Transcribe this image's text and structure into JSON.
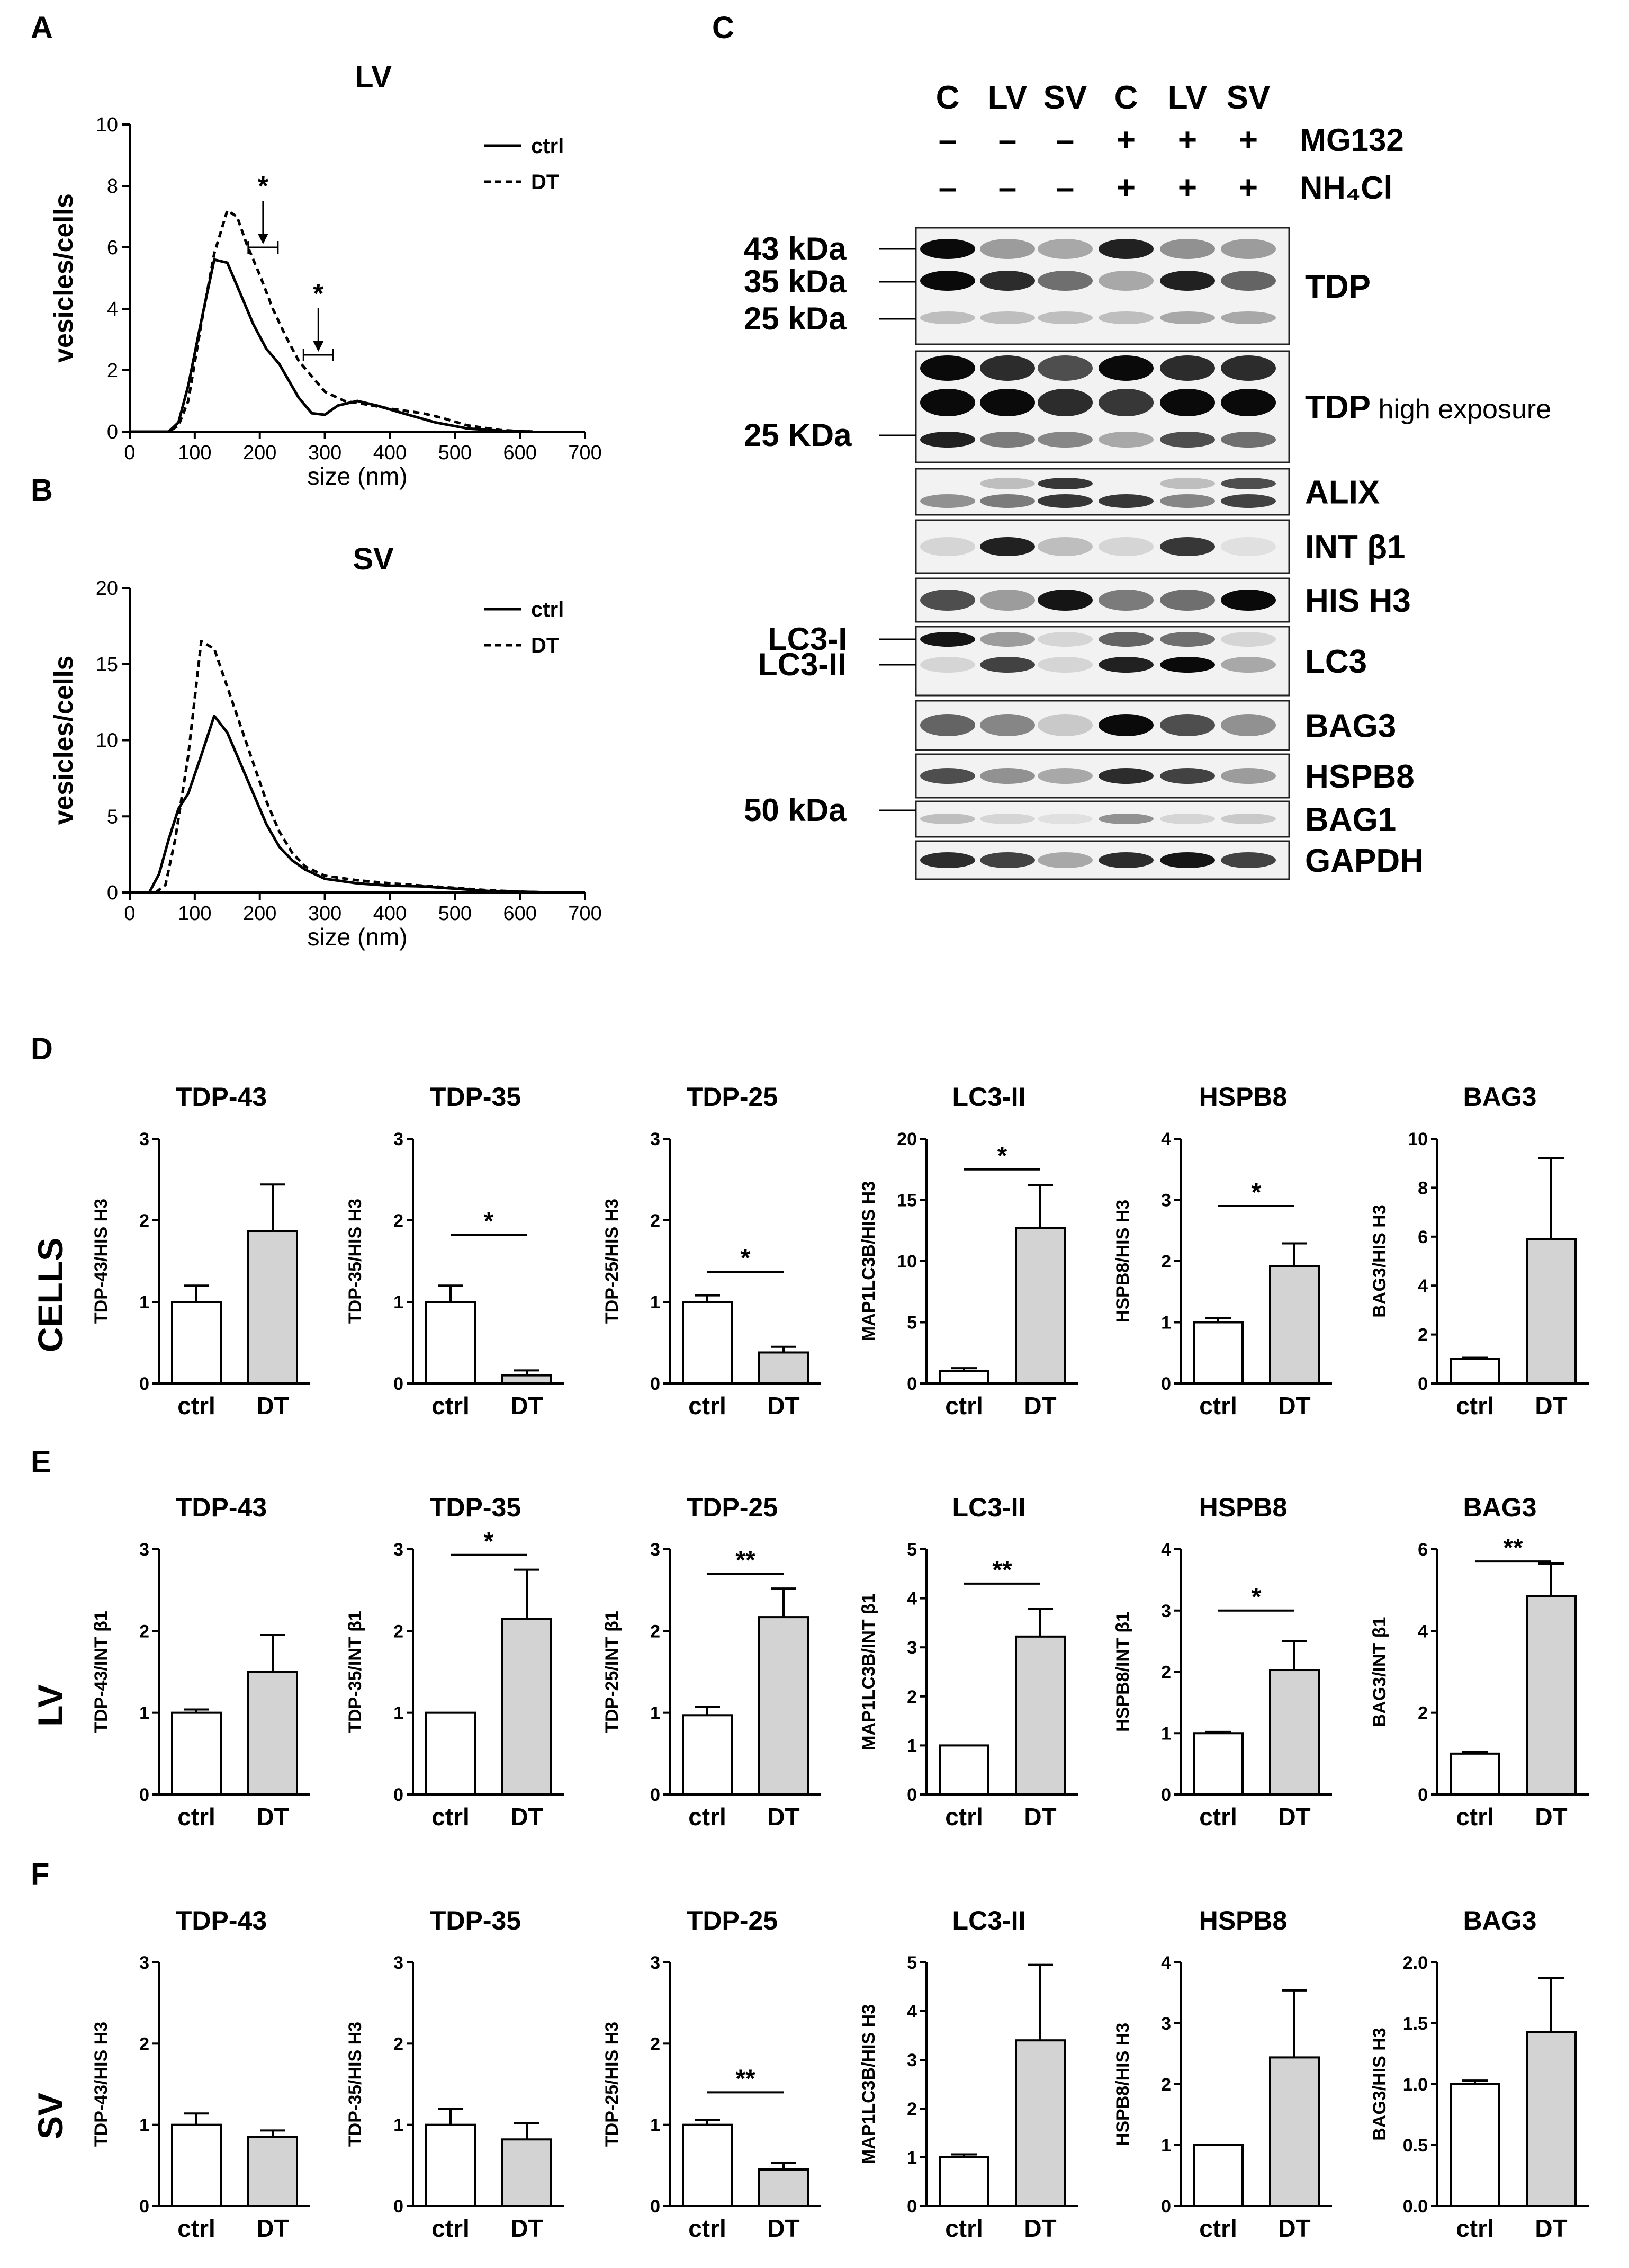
{
  "panel_letters": [
    "A",
    "B",
    "C",
    "D",
    "E",
    "F"
  ],
  "row_labels": [
    "CELLS",
    "LV",
    "SV"
  ],
  "xlabel_bar": [
    "ctrl",
    "DT"
  ],
  "blot": {
    "lanes": [
      "C",
      "LV",
      "SV",
      "C",
      "LV",
      "SV"
    ],
    "treatments": [
      {
        "name": "MG132",
        "signs": [
          "–",
          "–",
          "–",
          "+",
          "+",
          "+"
        ]
      },
      {
        "name": "NH₄Cl",
        "signs": [
          "–",
          "–",
          "–",
          "+",
          "+",
          "+"
        ]
      }
    ],
    "markers": [
      "43 kDa",
      "35 kDa",
      "25 kDa",
      "25 KDa",
      "LC3-I",
      "LC3-II",
      "50 kDa"
    ],
    "bands": [
      {
        "label": "TDP",
        "sub": ""
      },
      {
        "label": "TDP",
        "sub": "high exposure"
      },
      {
        "label": "ALIX",
        "sub": ""
      },
      {
        "label": "INT β1",
        "sub": ""
      },
      {
        "label": "HIS H3",
        "sub": ""
      },
      {
        "label": "LC3",
        "sub": ""
      },
      {
        "label": "BAG3",
        "sub": ""
      },
      {
        "label": "HSPB8",
        "sub": ""
      },
      {
        "label": "BAG1",
        "sub": ""
      },
      {
        "label": "GAPDH",
        "sub": ""
      }
    ]
  },
  "chart_data": [
    {
      "panel": "A",
      "type": "line",
      "title": "LV",
      "xlabel": "size (nm)",
      "ylabel": "vesicles/cells",
      "xlim": [
        0,
        700
      ],
      "ylim": [
        0,
        10
      ],
      "xticks": [
        0,
        100,
        200,
        300,
        400,
        500,
        600,
        700
      ],
      "yticks": [
        0,
        2,
        4,
        6,
        8,
        10
      ],
      "legend": "top-right",
      "series": [
        {
          "name": "ctrl",
          "style": "solid",
          "x": [
            0,
            60,
            75,
            90,
            110,
            130,
            150,
            170,
            190,
            210,
            230,
            260,
            280,
            300,
            320,
            350,
            380,
            420,
            470,
            520,
            570,
            620
          ],
          "y": [
            0,
            0,
            0.3,
            1.5,
            3.6,
            5.6,
            5.5,
            4.5,
            3.5,
            2.7,
            2.2,
            1.1,
            0.6,
            0.55,
            0.85,
            1.0,
            0.85,
            0.6,
            0.3,
            0.1,
            0.03,
            0
          ]
        },
        {
          "name": "DT",
          "style": "dashed",
          "x": [
            0,
            60,
            75,
            90,
            110,
            130,
            150,
            165,
            180,
            200,
            220,
            240,
            260,
            280,
            300,
            330,
            360,
            400,
            450,
            480,
            520,
            570,
            620
          ],
          "y": [
            0,
            0,
            0.2,
            1.0,
            3.5,
            5.8,
            7.2,
            7.0,
            6.1,
            5.1,
            4.0,
            3.1,
            2.3,
            1.8,
            1.3,
            1.0,
            0.9,
            0.75,
            0.6,
            0.45,
            0.2,
            0.05,
            0
          ]
        }
      ],
      "annotations": [
        {
          "text": "*",
          "x": 205,
          "y": 6.0
        },
        {
          "text": "*",
          "x": 290,
          "y": 2.5
        }
      ]
    },
    {
      "panel": "B",
      "type": "line",
      "title": "SV",
      "xlabel": "size (nm)",
      "ylabel": "vesicles/cells",
      "xlim": [
        0,
        700
      ],
      "ylim": [
        0,
        20
      ],
      "xticks": [
        0,
        100,
        200,
        300,
        400,
        500,
        600,
        700
      ],
      "yticks": [
        0,
        5,
        10,
        15,
        20
      ],
      "legend": "top-right",
      "series": [
        {
          "name": "ctrl",
          "style": "solid",
          "x": [
            30,
            45,
            60,
            75,
            90,
            110,
            130,
            150,
            170,
            190,
            210,
            230,
            250,
            270,
            300,
            350,
            400,
            450,
            500,
            550,
            600,
            650
          ],
          "y": [
            0,
            1.2,
            3.5,
            5.5,
            6.5,
            9.0,
            11.6,
            10.5,
            8.5,
            6.5,
            4.5,
            3.0,
            2.1,
            1.5,
            0.9,
            0.6,
            0.45,
            0.4,
            0.25,
            0.1,
            0.05,
            0
          ]
        },
        {
          "name": "DT",
          "style": "dashed",
          "x": [
            40,
            55,
            70,
            90,
            110,
            130,
            150,
            170,
            190,
            210,
            230,
            250,
            270,
            300,
            350,
            400,
            450,
            500,
            550,
            600,
            650
          ],
          "y": [
            0,
            0.5,
            3.5,
            9.0,
            16.5,
            16.0,
            13.5,
            11.0,
            8.5,
            6.0,
            4.0,
            2.6,
            1.7,
            1.1,
            0.8,
            0.6,
            0.45,
            0.3,
            0.15,
            0.05,
            0
          ]
        }
      ]
    },
    {
      "panel": "D",
      "type": "bar",
      "title": "TDP-43",
      "ylabel": "TDP-43/HIS H3",
      "categories": [
        "ctrl",
        "DT"
      ],
      "values": [
        1.0,
        1.87
      ],
      "errors": [
        0.2,
        0.57
      ],
      "ylim": [
        0,
        3
      ],
      "yticks": [
        "0",
        "1",
        "2",
        "3"
      ],
      "sig": ""
    },
    {
      "panel": "D",
      "type": "bar",
      "title": "TDP-35",
      "ylabel": "TDP-35/HIS H3",
      "categories": [
        "ctrl",
        "DT"
      ],
      "values": [
        1.0,
        0.1
      ],
      "errors": [
        0.2,
        0.06
      ],
      "ylim": [
        0,
        3
      ],
      "yticks": [
        "0",
        "1",
        "2",
        "3"
      ],
      "sig": "*",
      "sig_y": 1.82
    },
    {
      "panel": "D",
      "type": "bar",
      "title": "TDP-25",
      "ylabel": "TDP-25/HIS H3",
      "categories": [
        "ctrl",
        "DT"
      ],
      "values": [
        1.0,
        0.38
      ],
      "errors": [
        0.08,
        0.07
      ],
      "ylim": [
        0,
        3
      ],
      "yticks": [
        "0",
        "1",
        "2",
        "3"
      ],
      "sig": "*",
      "sig_y": 1.37
    },
    {
      "panel": "D",
      "type": "bar",
      "title": "LC3-II",
      "ylabel": "MAP1LC3B/HIS H3",
      "categories": [
        "ctrl",
        "DT"
      ],
      "values": [
        1.0,
        12.7
      ],
      "errors": [
        0.25,
        3.5
      ],
      "ylim": [
        0,
        20
      ],
      "yticks": [
        "0",
        "5",
        "10",
        "15",
        "20"
      ],
      "sig": "*",
      "sig_y": 17.5
    },
    {
      "panel": "D",
      "type": "bar",
      "title": "HSPB8",
      "ylabel": "HSPB8/HIS H3",
      "categories": [
        "ctrl",
        "DT"
      ],
      "values": [
        1.0,
        1.92
      ],
      "errors": [
        0.07,
        0.37
      ],
      "ylim": [
        0,
        4
      ],
      "yticks": [
        "0",
        "1",
        "2",
        "3",
        "4"
      ],
      "sig": "*",
      "sig_y": 2.9
    },
    {
      "panel": "D",
      "type": "bar",
      "title": "BAG3",
      "ylabel": "BAG3/HIS H3",
      "categories": [
        "ctrl",
        "DT"
      ],
      "values": [
        1.0,
        5.9
      ],
      "errors": [
        0.05,
        3.3
      ],
      "ylim": [
        0,
        10
      ],
      "yticks": [
        "0",
        "2",
        "4",
        "6",
        "8",
        "10"
      ],
      "sig": ""
    },
    {
      "panel": "E",
      "type": "bar",
      "title": "TDP-43",
      "ylabel": "TDP-43/INT β1",
      "categories": [
        "ctrl",
        "DT"
      ],
      "values": [
        1.0,
        1.5
      ],
      "errors": [
        0.04,
        0.45
      ],
      "ylim": [
        0,
        3
      ],
      "yticks": [
        "0",
        "1",
        "2",
        "3"
      ],
      "sig": ""
    },
    {
      "panel": "E",
      "type": "bar",
      "title": "TDP-35",
      "ylabel": "TDP-35/INT β1",
      "categories": [
        "ctrl",
        "DT"
      ],
      "values": [
        1.0,
        2.15
      ],
      "errors": [
        0.0,
        0.6
      ],
      "ylim": [
        0,
        3
      ],
      "yticks": [
        "0",
        "1",
        "2",
        "3"
      ],
      "sig": "*",
      "sig_y": 2.93
    },
    {
      "panel": "E",
      "type": "bar",
      "title": "TDP-25",
      "ylabel": "TDP-25/INT β1",
      "categories": [
        "ctrl",
        "DT"
      ],
      "values": [
        0.97,
        2.17
      ],
      "errors": [
        0.1,
        0.35
      ],
      "ylim": [
        0,
        3
      ],
      "yticks": [
        "0",
        "1",
        "2",
        "3"
      ],
      "sig": "**",
      "sig_y": 2.7
    },
    {
      "panel": "E",
      "type": "bar",
      "title": "LC3-II",
      "ylabel": "MAP1LC3B/INT β1",
      "categories": [
        "ctrl",
        "DT"
      ],
      "values": [
        1.0,
        3.22
      ],
      "errors": [
        0.0,
        0.57
      ],
      "ylim": [
        0,
        5
      ],
      "yticks": [
        "0",
        "1",
        "2",
        "3",
        "4",
        "5"
      ],
      "sig": "**",
      "sig_y": 4.3
    },
    {
      "panel": "E",
      "type": "bar",
      "title": "HSPB8",
      "ylabel": "HSPB8/INT β1",
      "categories": [
        "ctrl",
        "DT"
      ],
      "values": [
        1.0,
        2.03
      ],
      "errors": [
        0.02,
        0.47
      ],
      "ylim": [
        0,
        4
      ],
      "yticks": [
        "0",
        "1",
        "2",
        "3",
        "4"
      ],
      "sig": "*",
      "sig_y": 3.0
    },
    {
      "panel": "E",
      "type": "bar",
      "title": "BAG3",
      "ylabel": "BAG3/INT β1",
      "categories": [
        "ctrl",
        "DT"
      ],
      "values": [
        1.0,
        4.85
      ],
      "errors": [
        0.05,
        0.8
      ],
      "ylim": [
        0,
        6
      ],
      "yticks": [
        "0",
        "2",
        "4",
        "6"
      ],
      "sig": "**",
      "sig_y": 5.7
    },
    {
      "panel": "F",
      "type": "bar",
      "title": "TDP-43",
      "ylabel": "TDP-43/HIS H3",
      "categories": [
        "ctrl",
        "DT"
      ],
      "values": [
        1.0,
        0.85
      ],
      "errors": [
        0.14,
        0.08
      ],
      "ylim": [
        0,
        3
      ],
      "yticks": [
        "0",
        "1",
        "2",
        "3"
      ],
      "sig": ""
    },
    {
      "panel": "F",
      "type": "bar",
      "title": "TDP-35",
      "ylabel": "TDP-35/HIS H3",
      "categories": [
        "ctrl",
        "DT"
      ],
      "values": [
        1.0,
        0.82
      ],
      "errors": [
        0.2,
        0.2
      ],
      "ylim": [
        0,
        3
      ],
      "yticks": [
        "0",
        "1",
        "2",
        "3"
      ],
      "sig": ""
    },
    {
      "panel": "F",
      "type": "bar",
      "title": "TDP-25",
      "ylabel": "TDP-25/HIS H3",
      "categories": [
        "ctrl",
        "DT"
      ],
      "values": [
        1.0,
        0.45
      ],
      "errors": [
        0.06,
        0.08
      ],
      "ylim": [
        0,
        3
      ],
      "yticks": [
        "0",
        "1",
        "2",
        "3"
      ],
      "sig": "**",
      "sig_y": 1.4
    },
    {
      "panel": "F",
      "type": "bar",
      "title": "LC3-II",
      "ylabel": "MAP1LC3B/HIS H3",
      "categories": [
        "ctrl",
        "DT"
      ],
      "values": [
        1.0,
        3.4
      ],
      "errors": [
        0.06,
        1.55
      ],
      "ylim": [
        0,
        5
      ],
      "yticks": [
        "0",
        "1",
        "2",
        "3",
        "4",
        "5"
      ],
      "sig": ""
    },
    {
      "panel": "F",
      "type": "bar",
      "title": "HSPB8",
      "ylabel": "HSPB8/HIS H3",
      "categories": [
        "ctrl",
        "DT"
      ],
      "values": [
        1.0,
        2.44
      ],
      "errors": [
        0.0,
        1.1
      ],
      "ylim": [
        0,
        4
      ],
      "yticks": [
        "0",
        "1",
        "2",
        "3",
        "4"
      ],
      "sig": ""
    },
    {
      "panel": "F",
      "type": "bar",
      "title": "BAG3",
      "ylabel": "BAG3/HIS H3",
      "categories": [
        "ctrl",
        "DT"
      ],
      "values": [
        1.0,
        1.43
      ],
      "errors": [
        0.03,
        0.44
      ],
      "ylim": [
        0,
        2
      ],
      "yticks": [
        "0.0",
        "0.5",
        "1.0",
        "1.5",
        "2.0"
      ],
      "sig": ""
    }
  ]
}
